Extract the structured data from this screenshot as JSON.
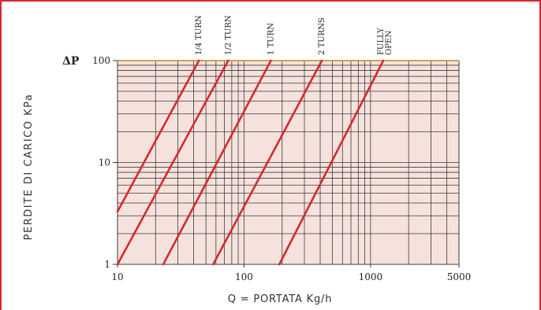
{
  "chart_data": {
    "type": "line",
    "title": "",
    "xlabel": "Q = PORTATA Kg/h",
    "ylabel": "PERDITE DI CARICO KPa",
    "ysymbol": "ΔP",
    "xscale": "log",
    "yscale": "log",
    "xlim": [
      10,
      5000
    ],
    "ylim": [
      1,
      100
    ],
    "grid": true,
    "colors": {
      "line": "#d42a30",
      "plot_bg": "#f6e2dc",
      "grid": "#3a3a3a",
      "frame": "#d42a30",
      "top_edge": "#c8a850"
    },
    "x_ticks": [
      {
        "value": 10,
        "label": "10"
      },
      {
        "value": 100,
        "label": "100"
      },
      {
        "value": 1000,
        "label": "1000"
      },
      {
        "value": 5000,
        "label": "5000"
      }
    ],
    "y_ticks": [
      {
        "value": 1,
        "label": "1"
      },
      {
        "value": 10,
        "label": "10"
      },
      {
        "value": 100,
        "label": "100"
      }
    ],
    "series": [
      {
        "name": "1/4 TURN",
        "label_lines": [
          "1/4 TURN"
        ],
        "x": [
          10,
          44
        ],
        "y": [
          3.3,
          100
        ]
      },
      {
        "name": "1/2 TURN",
        "label_lines": [
          "1/2 TURN"
        ],
        "x": [
          10,
          75
        ],
        "y": [
          1,
          100
        ]
      },
      {
        "name": "1 TURN",
        "label_lines": [
          "1 TURN"
        ],
        "x": [
          23,
          163
        ],
        "y": [
          1,
          100
        ]
      },
      {
        "name": "2 TURNS",
        "label_lines": [
          "2 TURNS"
        ],
        "x": [
          57,
          412
        ],
        "y": [
          1,
          100
        ]
      },
      {
        "name": "FULLY OPEN",
        "label_lines": [
          "FULLY",
          "OPEN"
        ],
        "x": [
          190,
          1260
        ],
        "y": [
          1,
          100
        ]
      }
    ]
  }
}
